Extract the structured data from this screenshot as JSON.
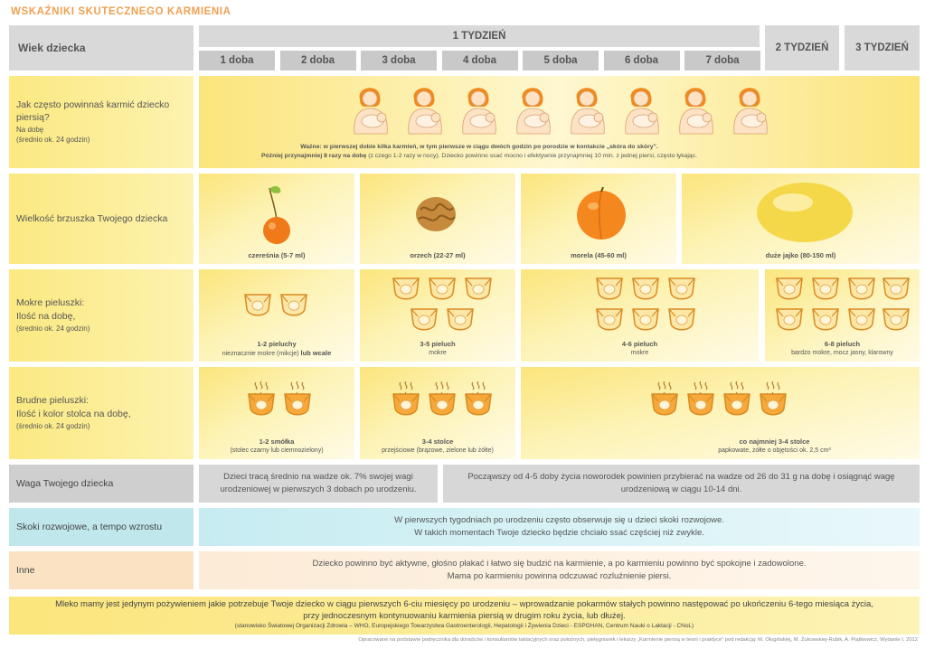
{
  "title": "WSKAŹNIKI SKUTECZNEGO KARMIENIA",
  "header": {
    "age_label": "Wiek dziecka",
    "week1": "1 TYDZIEŃ",
    "week2": "2 TYDZIEŃ",
    "week3": "3 TYDZIEŃ",
    "days": [
      "1 doba",
      "2 doba",
      "3 doba",
      "4 doba",
      "5 doba",
      "6 doba",
      "7 doba"
    ]
  },
  "feeding": {
    "label_main": "Jak często powinnaś karmić dziecko piersią?",
    "label_sub1": "Na dobę",
    "label_sub2": "(średnio ok. 24 godzin)",
    "note_bold": "Ważne: w pierwszej dobie kilka karmień, w tym pierwsze w ciągu dwóch godzin po porodzie w kontakcie „skóra do skóry”.",
    "note_bold2": "Później przynajmniej 8 razy na dobę",
    "note_rest": "(z czego 1-2 razy w nocy). Dziecko powinno ssać mocno i efektywnie przynajmniej 10 min. z jednej piersi, często łykając.",
    "mother_icon": "breastfeeding-mother-icon"
  },
  "stomach": {
    "label": "Wielkość brzuszka Twojego dziecka",
    "items": [
      {
        "caption": "czereśnia (5-7 ml)",
        "icon": "cherry-icon"
      },
      {
        "caption": "orzech (22-27 ml)",
        "icon": "walnut-icon"
      },
      {
        "caption": "morela (45-60 ml)",
        "icon": "apricot-icon"
      },
      {
        "caption": "duże jajko (80-150 ml)",
        "icon": "egg-icon"
      }
    ],
    "colors": {
      "cherry": "#f07a1a",
      "walnut": "#c58a3c",
      "apricot": "#f5871f",
      "egg": "#f5d84a"
    }
  },
  "wet": {
    "label_main1": "Mokre pieluszki:",
    "label_main2": "Ilość na dobę,",
    "label_sub": "(średnio ok. 24 godzin)",
    "groups": [
      {
        "count_label": "1-2 pieluchy",
        "desc": "nieznacznie mokre (mikcje)",
        "desc_bold": "lub wcale"
      },
      {
        "count_label": "3-5 pieluch",
        "desc": "mokre"
      },
      {
        "count_label": "4-6 pieluch",
        "desc": "mokre"
      },
      {
        "count_label": "6-8 pieluch",
        "desc": "bardzo mokre, mocz jasny, klarowny"
      }
    ],
    "icon": "wet-diaper-icon"
  },
  "dirty": {
    "label_main1": "Brudne pieluszki:",
    "label_main2": "Ilość i kolor stolca na dobę,",
    "label_sub": "(średnio ok. 24 godzin)",
    "groups": [
      {
        "count_label": "1-2 smółka",
        "desc": "(stolec czarny lub ciemnozielony)"
      },
      {
        "count_label": "3-4 stolce",
        "desc": "przejściowe (brązowe, zielone lub żółte)"
      },
      {
        "count_label": "co najmniej 3-4 stolce",
        "desc": "papkowate, żółte o objętości ok. 2,5 cm³"
      }
    ],
    "icon": "dirty-diaper-icon"
  },
  "weight": {
    "label": "Waga Twojego dziecka",
    "left": "Dzieci tracą średnio na wadze ok. 7% swojej wagi urodzeniowej w pierwszych 3 dobach po urodzeniu.",
    "right": "Począwszy od 4-5 doby życia noworodek powinien przybierać na wadze od 26 do 31 g na dobę i osiągnąć wagę urodzeniową w ciągu 10-14 dni."
  },
  "growth": {
    "label": "Skoki rozwojowe, a tempo wzrostu",
    "line1": "W pierwszych tygodniach po urodzeniu często obserwuje się u dzieci skoki rozwojowe.",
    "line2": "W takich momentach Twoje dziecko będzie chciało ssać częściej niż zwykle."
  },
  "other": {
    "label": "Inne",
    "line1": "Dziecko powinno być aktywne, głośno płakać i łatwo się budzić na karmienie, a po karmieniu powinno być spokojne i zadowolone.",
    "line2": "Mama po karmieniu powinna odczuwać rozluźnienie piersi."
  },
  "footer": {
    "line1": "Mleko mamy jest jedynym pożywieniem jakie potrzebuje Twoje dziecko w ciągu pierwszych 6-ciu miesięcy po urodzeniu – wprowadzanie pokarmów stałych powinno następować po ukończeniu 6-tego miesiąca życia,",
    "line2": "przy jednoczesnym kontynuowaniu karmienia piersią w drugim roku życia, lub dłużej.",
    "source": "(stanowisko Światowej Organizacji Zdrowia – WHO, Europejskiego Towarzystwa Gastroenterologii, Hepatologii i Żywienia Dzieci - ESPGHAN, Centrum Nauki o Laktacji - CNoL)",
    "credit": "Opracowane na podstawie podręcznika dla doradców i konsultantów laktacyjnych oraz położnych, pielęgniarek i lekarzy „Karmienie piersią w teorii i praktyce” pod redakcją: M. Oługińskiej, M. Żukowskiej-Rubik, A. Piątkiewicz, Wydanie I, 2012"
  }
}
